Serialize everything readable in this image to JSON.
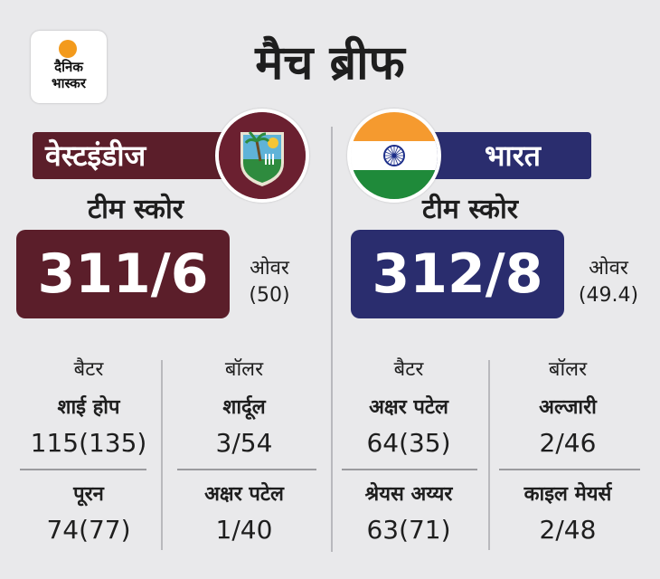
{
  "logo": {
    "line1": "दैनिक",
    "line2": "भास्कर"
  },
  "title": "मैच ब्रीफ",
  "teams": [
    {
      "name": "वेस्टइंडीज",
      "team_score_label": "टीम स्कोर",
      "score": "311/6",
      "overs_label": "ओवर",
      "overs": "(50)",
      "color": "#5b1e2a",
      "batters_label": "बैटर",
      "bowlers_label": "बॉलर",
      "batters": [
        {
          "name": "शाई होप",
          "figure": "115(135)"
        },
        {
          "name": "पूरन",
          "figure": "74(77)"
        }
      ],
      "bowlers": [
        {
          "name": "शार्दूल",
          "figure": "3/54"
        },
        {
          "name": "अक्षर पटेल",
          "figure": "1/40"
        }
      ]
    },
    {
      "name": "भारत",
      "team_score_label": "टीम स्कोर",
      "score": "312/8",
      "overs_label": "ओवर",
      "overs": "(49.4)",
      "color": "#2a2d6e",
      "batters_label": "बैटर",
      "bowlers_label": "बॉलर",
      "batters": [
        {
          "name": "अक्षर पटेल",
          "figure": "64(35)"
        },
        {
          "name": "श्रेयस अय्यर",
          "figure": "63(71)"
        }
      ],
      "bowlers": [
        {
          "name": "अल्जारी",
          "figure": "2/46"
        },
        {
          "name": "काइल मेयर्स",
          "figure": "2/48"
        }
      ]
    }
  ]
}
